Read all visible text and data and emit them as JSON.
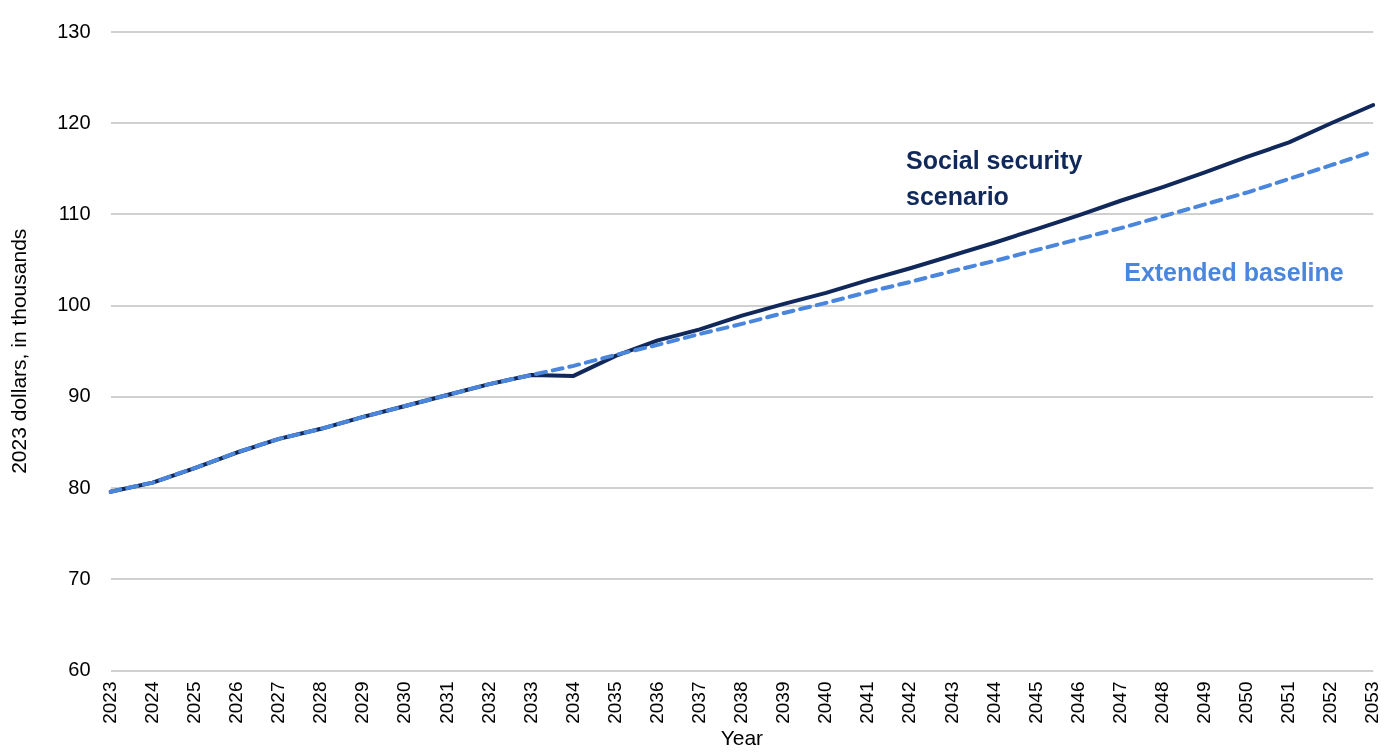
{
  "chart_data": {
    "type": "line",
    "xlabel": "Year",
    "ylabel": "2023 dollars, in thousands",
    "categories": [
      "2023",
      "2024",
      "2025",
      "2026",
      "2027",
      "2028",
      "2029",
      "2030",
      "2031",
      "2032",
      "2033",
      "2034",
      "2035",
      "2036",
      "2037",
      "2038",
      "2039",
      "2040",
      "2041",
      "2042",
      "2043",
      "2044",
      "2045",
      "2046",
      "2047",
      "2048",
      "2049",
      "2050",
      "2051",
      "2052",
      "2053"
    ],
    "series": [
      {
        "name": "Extended baseline",
        "color": "#4a86dc",
        "line_style": "dashed",
        "values": [
          79.6,
          80.6,
          82.2,
          83.9,
          85.4,
          86.5,
          87.8,
          89.0,
          90.2,
          91.4,
          92.4,
          93.4,
          94.6,
          95.7,
          96.9,
          98.0,
          99.2,
          100.3,
          101.5,
          102.6,
          103.8,
          104.9,
          106.1,
          107.3,
          108.5,
          109.8,
          111.1,
          112.4,
          113.9,
          115.4,
          116.9
        ]
      },
      {
        "name": "Social security scenario",
        "color": "#11295a",
        "line_style": "solid",
        "values": [
          79.6,
          80.6,
          82.2,
          83.9,
          85.4,
          86.5,
          87.8,
          89.0,
          90.2,
          91.4,
          92.4,
          92.3,
          94.5,
          96.2,
          97.4,
          98.9,
          100.2,
          101.4,
          102.8,
          104.1,
          105.5,
          106.9,
          108.4,
          109.9,
          111.5,
          113.0,
          114.6,
          116.3,
          117.9,
          120.0,
          122.0
        ]
      }
    ],
    "ylim": [
      60,
      130
    ],
    "yticks": [
      60,
      70,
      80,
      90,
      100,
      110,
      120,
      130
    ],
    "grid": "y",
    "legend": false,
    "marker": "none"
  }
}
